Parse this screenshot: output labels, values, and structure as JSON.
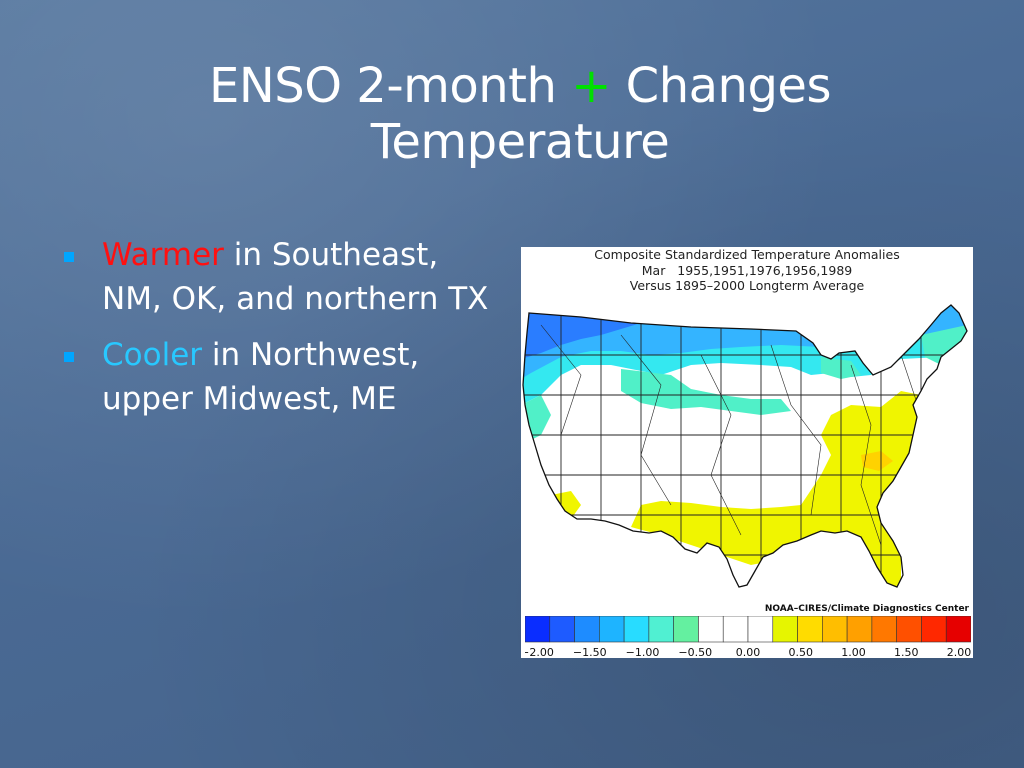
{
  "slide": {
    "title_line1_a": "ENSO 2-month",
    "title_plus": "+",
    "title_line1_b": "Changes",
    "title_line2": "Temperature"
  },
  "bullets": [
    {
      "keyword": "Warmer",
      "text": " in Southeast, NM, OK, and northern TX"
    },
    {
      "keyword": "Cooler",
      "text": " in Northwest, upper Midwest, ME"
    }
  ],
  "figure": {
    "title_lines": [
      "Composite Standardized Temperature Anomalies",
      "Mar   1955,1951,1976,1956,1989",
      "Versus 1895–2000 Longterm Average"
    ],
    "credit": "NOAA–CIRES/Climate Diagnostics Center",
    "colorbar": {
      "colors": [
        "#0a2dff",
        "#1e5bff",
        "#1e8cff",
        "#1eb4ff",
        "#28dcff",
        "#50f0d2",
        "#64f0a0",
        "#ffffff",
        "#ffffff",
        "#ffffff",
        "#e6f500",
        "#ffdc00",
        "#ffbe00",
        "#ffa000",
        "#ff7800",
        "#ff5000",
        "#ff2800",
        "#e60000"
      ],
      "tick_labels": [
        "−2.00",
        "−1.50",
        "−1.00",
        "−0.50",
        "0.00",
        "0.50",
        "1.00",
        "1.50",
        "2.00"
      ]
    }
  },
  "colors": {
    "cool_deep": "#2a7dff",
    "cool_mid": "#34b4ff",
    "cool_light": "#34e8f0",
    "aqua": "#50f0c8",
    "neutral": "#ffffff",
    "warm_light": "#f0f500",
    "warm_mid": "#ffd200",
    "warm_high": "#ffae00"
  }
}
